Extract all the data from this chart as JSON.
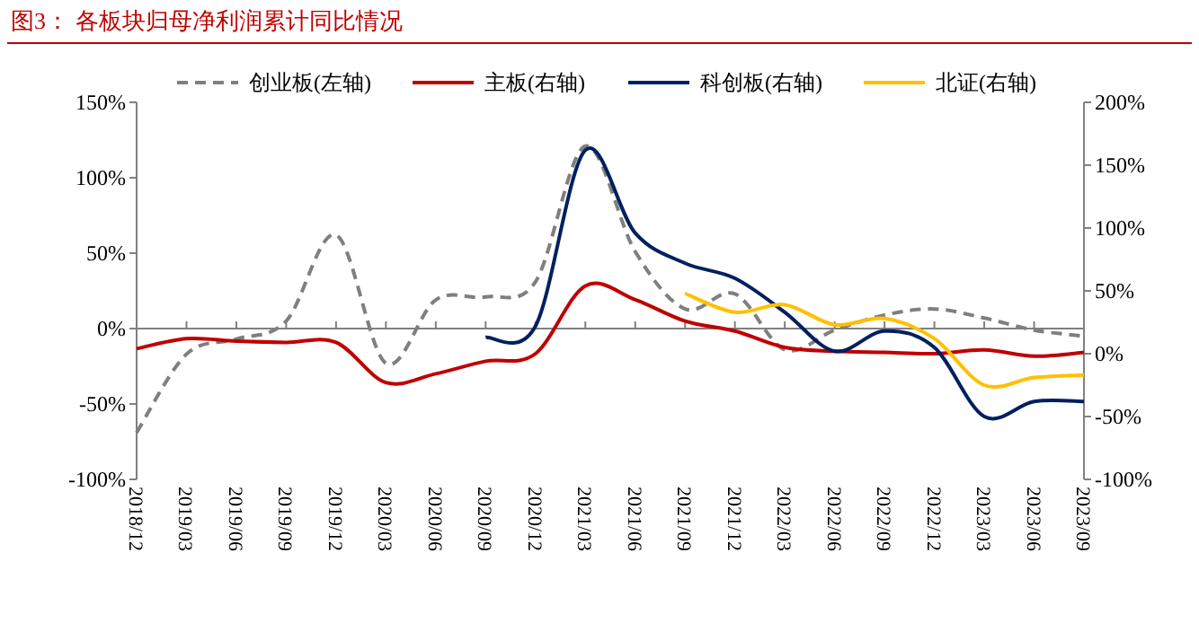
{
  "chart_data": {
    "type": "line",
    "title": "图3：  各板块归母净利润累计同比情况",
    "categories": [
      "2018/12",
      "2019/03",
      "2019/06",
      "2019/09",
      "2019/12",
      "2020/03",
      "2020/06",
      "2020/09",
      "2020/12",
      "2021/03",
      "2021/06",
      "2021/09",
      "2021/12",
      "2022/03",
      "2022/06",
      "2022/09",
      "2022/12",
      "2023/03",
      "2023/06",
      "2023/09"
    ],
    "series": [
      {
        "name": "创业板(左轴)",
        "color": "#7f7f7f",
        "line_style": "dashed",
        "values": [
          -69,
          -17,
          -7,
          5,
          62,
          -23,
          19,
          21,
          31,
          121,
          51,
          13,
          23,
          -14,
          -1,
          9,
          13,
          7,
          -1,
          -5
        ]
      },
      {
        "name": "主板(右轴)",
        "color": "#c00000",
        "axis": "y2",
        "values": [
          4,
          12,
          10,
          9,
          9,
          -23,
          -16,
          -6,
          0,
          54,
          43,
          26,
          18,
          5,
          2,
          1,
          0,
          3,
          -2,
          1
        ]
      },
      {
        "name": "科创板(右轴)",
        "color": "#002060",
        "axis": "y2",
        "values": [
          null,
          null,
          null,
          null,
          null,
          null,
          null,
          13,
          22,
          162,
          96,
          72,
          60,
          33,
          2,
          18,
          5,
          -50,
          -38,
          -38
        ]
      },
      {
        "name": "北证(右轴)",
        "color": "#ffc000",
        "axis": "y2",
        "values": [
          null,
          null,
          null,
          null,
          null,
          null,
          null,
          null,
          null,
          null,
          null,
          48,
          33,
          39,
          23,
          28,
          12,
          -25,
          -19,
          -17
        ]
      }
    ],
    "ylim": [
      -100,
      150
    ],
    "yticks": [
      {
        "value": -100,
        "label": "-100%"
      },
      {
        "value": -50,
        "label": "-50%"
      },
      {
        "value": 0,
        "label": "0%"
      },
      {
        "value": 50,
        "label": "50%"
      },
      {
        "value": 100,
        "label": "100%"
      },
      {
        "value": 150,
        "label": "150%"
      }
    ],
    "y2lim": [
      -100,
      200
    ],
    "y2ticks": [
      {
        "value": -100,
        "label": "-100%"
      },
      {
        "value": -50,
        "label": "-50%"
      },
      {
        "value": 0,
        "label": "0%"
      },
      {
        "value": 50,
        "label": "50%"
      },
      {
        "value": 100,
        "label": "100%"
      },
      {
        "value": 150,
        "label": "150%"
      },
      {
        "value": 200,
        "label": "200%"
      }
    ],
    "ref_lines": [
      {
        "axis": "y",
        "value": 0,
        "color": "#808080"
      }
    ],
    "legend": "top",
    "grid": false,
    "marker": "none"
  }
}
